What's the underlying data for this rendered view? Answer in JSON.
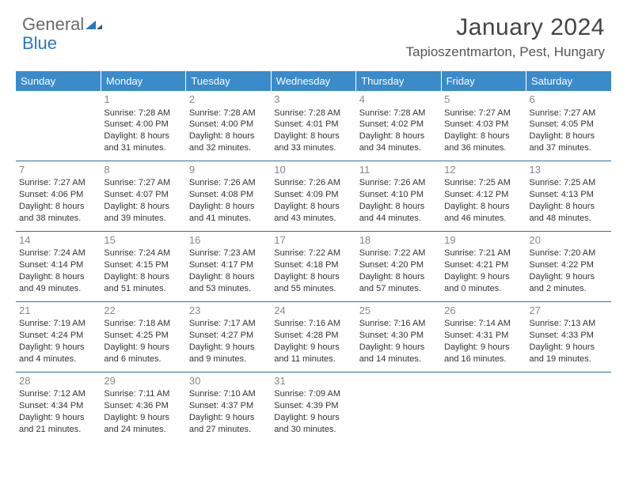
{
  "logo": {
    "text1": "General",
    "text2": "Blue"
  },
  "title": {
    "month": "January 2024",
    "location": "Tapioszentmarton, Pest, Hungary"
  },
  "colors": {
    "header_bg": "#3a8bc9",
    "header_text": "#ffffff",
    "row_divider": "#2a6fa8",
    "daynum": "#888888",
    "body_text": "#333333",
    "logo_gray": "#6a6a6a",
    "logo_blue": "#2678bf",
    "page_bg": "#ffffff"
  },
  "weekdays": [
    "Sunday",
    "Monday",
    "Tuesday",
    "Wednesday",
    "Thursday",
    "Friday",
    "Saturday"
  ],
  "weeks": [
    [
      null,
      {
        "n": "1",
        "sunrise": "7:28 AM",
        "sunset": "4:00 PM",
        "dl": "8 hours and 31 minutes."
      },
      {
        "n": "2",
        "sunrise": "7:28 AM",
        "sunset": "4:00 PM",
        "dl": "8 hours and 32 minutes."
      },
      {
        "n": "3",
        "sunrise": "7:28 AM",
        "sunset": "4:01 PM",
        "dl": "8 hours and 33 minutes."
      },
      {
        "n": "4",
        "sunrise": "7:28 AM",
        "sunset": "4:02 PM",
        "dl": "8 hours and 34 minutes."
      },
      {
        "n": "5",
        "sunrise": "7:27 AM",
        "sunset": "4:03 PM",
        "dl": "8 hours and 36 minutes."
      },
      {
        "n": "6",
        "sunrise": "7:27 AM",
        "sunset": "4:05 PM",
        "dl": "8 hours and 37 minutes."
      }
    ],
    [
      {
        "n": "7",
        "sunrise": "7:27 AM",
        "sunset": "4:06 PM",
        "dl": "8 hours and 38 minutes."
      },
      {
        "n": "8",
        "sunrise": "7:27 AM",
        "sunset": "4:07 PM",
        "dl": "8 hours and 39 minutes."
      },
      {
        "n": "9",
        "sunrise": "7:26 AM",
        "sunset": "4:08 PM",
        "dl": "8 hours and 41 minutes."
      },
      {
        "n": "10",
        "sunrise": "7:26 AM",
        "sunset": "4:09 PM",
        "dl": "8 hours and 43 minutes."
      },
      {
        "n": "11",
        "sunrise": "7:26 AM",
        "sunset": "4:10 PM",
        "dl": "8 hours and 44 minutes."
      },
      {
        "n": "12",
        "sunrise": "7:25 AM",
        "sunset": "4:12 PM",
        "dl": "8 hours and 46 minutes."
      },
      {
        "n": "13",
        "sunrise": "7:25 AM",
        "sunset": "4:13 PM",
        "dl": "8 hours and 48 minutes."
      }
    ],
    [
      {
        "n": "14",
        "sunrise": "7:24 AM",
        "sunset": "4:14 PM",
        "dl": "8 hours and 49 minutes."
      },
      {
        "n": "15",
        "sunrise": "7:24 AM",
        "sunset": "4:15 PM",
        "dl": "8 hours and 51 minutes."
      },
      {
        "n": "16",
        "sunrise": "7:23 AM",
        "sunset": "4:17 PM",
        "dl": "8 hours and 53 minutes."
      },
      {
        "n": "17",
        "sunrise": "7:22 AM",
        "sunset": "4:18 PM",
        "dl": "8 hours and 55 minutes."
      },
      {
        "n": "18",
        "sunrise": "7:22 AM",
        "sunset": "4:20 PM",
        "dl": "8 hours and 57 minutes."
      },
      {
        "n": "19",
        "sunrise": "7:21 AM",
        "sunset": "4:21 PM",
        "dl": "9 hours and 0 minutes."
      },
      {
        "n": "20",
        "sunrise": "7:20 AM",
        "sunset": "4:22 PM",
        "dl": "9 hours and 2 minutes."
      }
    ],
    [
      {
        "n": "21",
        "sunrise": "7:19 AM",
        "sunset": "4:24 PM",
        "dl": "9 hours and 4 minutes."
      },
      {
        "n": "22",
        "sunrise": "7:18 AM",
        "sunset": "4:25 PM",
        "dl": "9 hours and 6 minutes."
      },
      {
        "n": "23",
        "sunrise": "7:17 AM",
        "sunset": "4:27 PM",
        "dl": "9 hours and 9 minutes."
      },
      {
        "n": "24",
        "sunrise": "7:16 AM",
        "sunset": "4:28 PM",
        "dl": "9 hours and 11 minutes."
      },
      {
        "n": "25",
        "sunrise": "7:16 AM",
        "sunset": "4:30 PM",
        "dl": "9 hours and 14 minutes."
      },
      {
        "n": "26",
        "sunrise": "7:14 AM",
        "sunset": "4:31 PM",
        "dl": "9 hours and 16 minutes."
      },
      {
        "n": "27",
        "sunrise": "7:13 AM",
        "sunset": "4:33 PM",
        "dl": "9 hours and 19 minutes."
      }
    ],
    [
      {
        "n": "28",
        "sunrise": "7:12 AM",
        "sunset": "4:34 PM",
        "dl": "9 hours and 21 minutes."
      },
      {
        "n": "29",
        "sunrise": "7:11 AM",
        "sunset": "4:36 PM",
        "dl": "9 hours and 24 minutes."
      },
      {
        "n": "30",
        "sunrise": "7:10 AM",
        "sunset": "4:37 PM",
        "dl": "9 hours and 27 minutes."
      },
      {
        "n": "31",
        "sunrise": "7:09 AM",
        "sunset": "4:39 PM",
        "dl": "9 hours and 30 minutes."
      },
      null,
      null,
      null
    ]
  ],
  "labels": {
    "sunrise": "Sunrise: ",
    "sunset": "Sunset: ",
    "daylight": "Daylight: "
  }
}
